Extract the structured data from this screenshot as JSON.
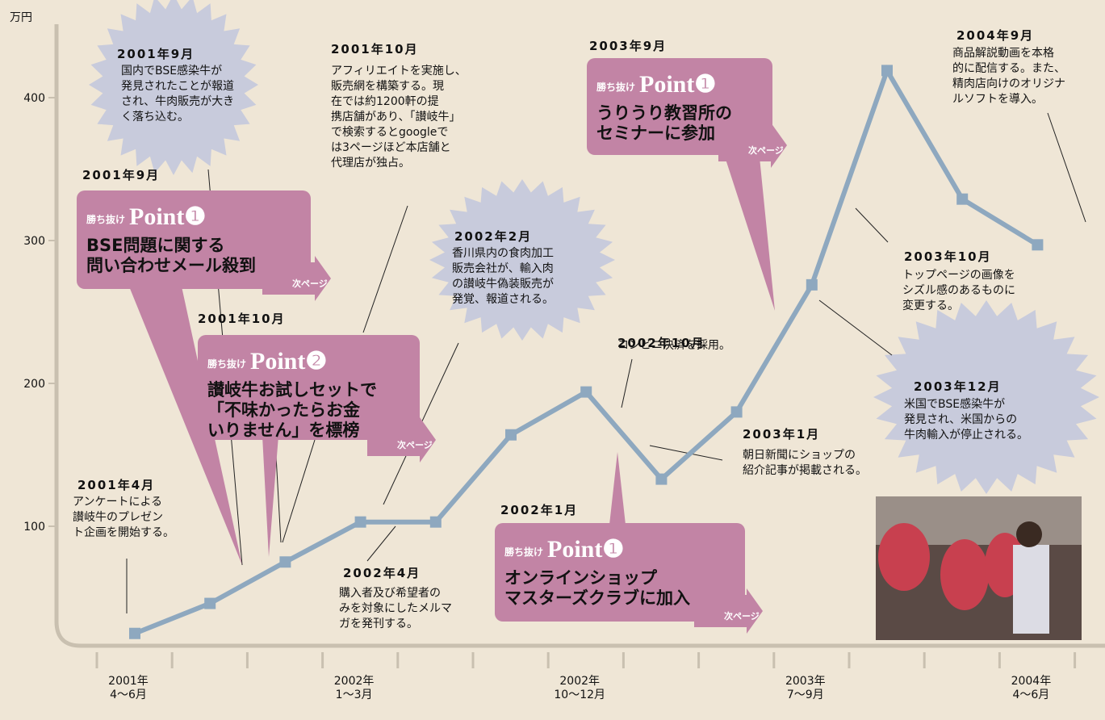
{
  "chart_data": {
    "type": "line",
    "y_label": "万円",
    "categories": [
      "2001年\n4～6月",
      null,
      null,
      "2002年\n1～3月",
      null,
      null,
      "2002年\n10～12月",
      null,
      null,
      "2003年\n7～9月",
      null,
      null,
      "2004年\n4～6月"
    ],
    "series": [
      {
        "color": "#8ea8bf",
        "values": [
          25,
          46,
          75,
          103,
          103,
          164,
          194,
          133,
          180,
          269,
          419,
          329,
          297
        ]
      }
    ],
    "ylim": [
      15,
      455
    ],
    "yticks": [
      100,
      200,
      300,
      400
    ],
    "grid": false
  },
  "notes": [
    {
      "date": "2001年9月",
      "lines": [
        "国内でBSE感染牛が",
        "発見されたことが報道",
        "され、牛肉販売が大き",
        "く落ち込む。"
      ]
    },
    {
      "date": "2001年10月",
      "lines": [
        "アフィリエイトを実施し、",
        "販売網を構築する。現",
        "在では約1200軒の提",
        "携店舗があり、「讃岐牛」",
        "で検索するとgoogleで",
        "は3ページほど本店舗と",
        "代理店が独占。"
      ]
    },
    {
      "date": "2002年2月",
      "lines": [
        "香川県内の食肉加工",
        "販売会社が、輸入肉",
        "の讃岐牛偽装販売が",
        "発覚、報道される。"
      ]
    },
    {
      "date": "2002年10月",
      "lines": [
        "コンビニ決済を採用。"
      ]
    },
    {
      "date": "2003年1月",
      "lines": [
        "朝日新聞にショップの",
        "紹介記事が掲載される。"
      ]
    },
    {
      "date": "2004年9月",
      "lines": [
        "商品解説動画を本格",
        "的に配信する。また、",
        "精肉店向けのオリジナ",
        "ルソフトを導入。"
      ]
    },
    {
      "date": "2003年10月",
      "lines": [
        "トップページの画像を",
        "シズル感のあるものに",
        "変更する。"
      ]
    },
    {
      "date": "2003年12月",
      "lines": [
        "米国でBSE感染牛が",
        "発見され、米国からの",
        "牛肉輸入が停止される。"
      ]
    },
    {
      "date": "2001年4月",
      "lines": [
        "アンケートによる",
        "讃岐牛のプレゼン",
        "ト企画を開始する。"
      ]
    },
    {
      "date": "2002年4月",
      "lines": [
        "購入者及び希望者の",
        "みを対象にしたメルマ",
        "ガを発刊する。"
      ]
    }
  ],
  "points": [
    {
      "date": "2001年9月",
      "badge": "勝ち抜け",
      "point": "Point❶",
      "title": [
        "BSE問題に関する",
        "問い合わせメール殺到"
      ],
      "next": "次ページ"
    },
    {
      "date": "2001年10月",
      "badge": "勝ち抜け",
      "point": "Point❷",
      "title": [
        "讃岐牛お試しセットで",
        "「不味かったらお金",
        "いりません」を標榜"
      ],
      "next": "次ページ"
    },
    {
      "date": "2003年9月",
      "badge": "勝ち抜け",
      "point": "Point❶",
      "title": [
        "うりうり教習所の",
        "セミナーに参加"
      ],
      "next": "次ページ"
    },
    {
      "date": "2002年1月",
      "badge": "勝ち抜け",
      "point": "Point❶",
      "title": [
        "オンラインショップ",
        "マスターズクラブに加入"
      ],
      "next": "次ページ"
    }
  ]
}
